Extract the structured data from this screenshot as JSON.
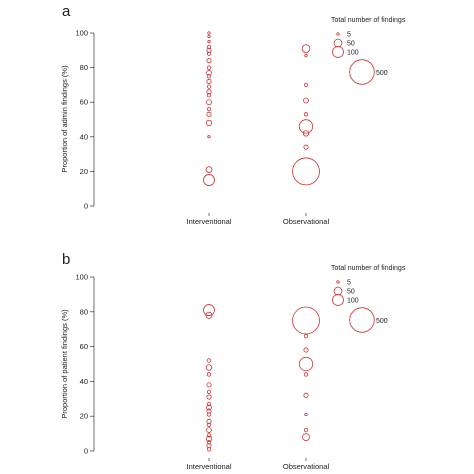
{
  "chart_data": [
    {
      "type": "scatter",
      "panel_label": "a",
      "title": "",
      "xlabel": "",
      "ylabel": "Proportion of admin findings (%)",
      "categories": [
        "Interventional",
        "Observational"
      ],
      "ylim": [
        0,
        100
      ],
      "yticks": [
        0,
        20,
        40,
        60,
        80,
        100
      ],
      "legend": {
        "title": "Total number of findings",
        "placement": "top-right",
        "entries": [
          {
            "label": "5",
            "value": 5
          },
          {
            "label": "50",
            "value": 50
          },
          {
            "label": "100",
            "value": 100
          },
          {
            "label": "500",
            "value": 500
          }
        ]
      },
      "marker_color": "#cc3333",
      "points": [
        {
          "category": "Interventional",
          "y": 100,
          "size": 5
        },
        {
          "category": "Interventional",
          "y": 98,
          "size": 5
        },
        {
          "category": "Interventional",
          "y": 95,
          "size": 5
        },
        {
          "category": "Interventional",
          "y": 92,
          "size": 10
        },
        {
          "category": "Interventional",
          "y": 90,
          "size": 15
        },
        {
          "category": "Interventional",
          "y": 88,
          "size": 10
        },
        {
          "category": "Interventional",
          "y": 84,
          "size": 15
        },
        {
          "category": "Interventional",
          "y": 80,
          "size": 10
        },
        {
          "category": "Interventional",
          "y": 77,
          "size": 20
        },
        {
          "category": "Interventional",
          "y": 75,
          "size": 10
        },
        {
          "category": "Interventional",
          "y": 72,
          "size": 15
        },
        {
          "category": "Interventional",
          "y": 69,
          "size": 10
        },
        {
          "category": "Interventional",
          "y": 66,
          "size": 15
        },
        {
          "category": "Interventional",
          "y": 64,
          "size": 10
        },
        {
          "category": "Interventional",
          "y": 60,
          "size": 20
        },
        {
          "category": "Interventional",
          "y": 56,
          "size": 10
        },
        {
          "category": "Interventional",
          "y": 53,
          "size": 15
        },
        {
          "category": "Interventional",
          "y": 48,
          "size": 25
        },
        {
          "category": "Interventional",
          "y": 40,
          "size": 5
        },
        {
          "category": "Interventional",
          "y": 21,
          "size": 30
        },
        {
          "category": "Interventional",
          "y": 15,
          "size": 100
        },
        {
          "category": "Observational",
          "y": 91,
          "size": 50
        },
        {
          "category": "Observational",
          "y": 87,
          "size": 5
        },
        {
          "category": "Observational",
          "y": 70,
          "size": 10
        },
        {
          "category": "Observational",
          "y": 61,
          "size": 20
        },
        {
          "category": "Observational",
          "y": 53,
          "size": 10
        },
        {
          "category": "Observational",
          "y": 46,
          "size": 150
        },
        {
          "category": "Observational",
          "y": 42,
          "size": 25
        },
        {
          "category": "Observational",
          "y": 34,
          "size": 15
        },
        {
          "category": "Observational",
          "y": 20,
          "size": 600
        }
      ]
    },
    {
      "type": "scatter",
      "panel_label": "b",
      "title": "",
      "xlabel": "",
      "ylabel": "Proportion of patient findings (%)",
      "categories": [
        "Interventional",
        "Observational"
      ],
      "ylim": [
        0,
        100
      ],
      "yticks": [
        0,
        20,
        40,
        60,
        80,
        100
      ],
      "legend": {
        "title": "Total number of findings",
        "placement": "top-right",
        "entries": [
          {
            "label": "5",
            "value": 5
          },
          {
            "label": "50",
            "value": 50
          },
          {
            "label": "100",
            "value": 100
          },
          {
            "label": "500",
            "value": 500
          }
        ]
      },
      "marker_color": "#cc3333",
      "points": [
        {
          "category": "Interventional",
          "y": 81,
          "size": 100
        },
        {
          "category": "Interventional",
          "y": 78,
          "size": 30
        },
        {
          "category": "Interventional",
          "y": 52,
          "size": 10
        },
        {
          "category": "Interventional",
          "y": 48,
          "size": 25
        },
        {
          "category": "Interventional",
          "y": 44,
          "size": 10
        },
        {
          "category": "Interventional",
          "y": 38,
          "size": 15
        },
        {
          "category": "Interventional",
          "y": 34,
          "size": 10
        },
        {
          "category": "Interventional",
          "y": 31,
          "size": 15
        },
        {
          "category": "Interventional",
          "y": 27,
          "size": 10
        },
        {
          "category": "Interventional",
          "y": 25,
          "size": 20
        },
        {
          "category": "Interventional",
          "y": 23,
          "size": 15
        },
        {
          "category": "Interventional",
          "y": 21,
          "size": 10
        },
        {
          "category": "Interventional",
          "y": 17,
          "size": 15
        },
        {
          "category": "Interventional",
          "y": 15,
          "size": 10
        },
        {
          "category": "Interventional",
          "y": 12,
          "size": 20
        },
        {
          "category": "Interventional",
          "y": 9,
          "size": 10
        },
        {
          "category": "Interventional",
          "y": 7,
          "size": 25
        },
        {
          "category": "Interventional",
          "y": 5,
          "size": 10
        },
        {
          "category": "Interventional",
          "y": 3,
          "size": 15
        },
        {
          "category": "Interventional",
          "y": 1,
          "size": 10
        },
        {
          "category": "Observational",
          "y": 75,
          "size": 600
        },
        {
          "category": "Observational",
          "y": 66,
          "size": 10
        },
        {
          "category": "Observational",
          "y": 58,
          "size": 15
        },
        {
          "category": "Observational",
          "y": 50,
          "size": 150
        },
        {
          "category": "Observational",
          "y": 44,
          "size": 10
        },
        {
          "category": "Observational",
          "y": 32,
          "size": 15
        },
        {
          "category": "Observational",
          "y": 21,
          "size": 5
        },
        {
          "category": "Observational",
          "y": 12,
          "size": 10
        },
        {
          "category": "Observational",
          "y": 8,
          "size": 40
        }
      ]
    }
  ]
}
